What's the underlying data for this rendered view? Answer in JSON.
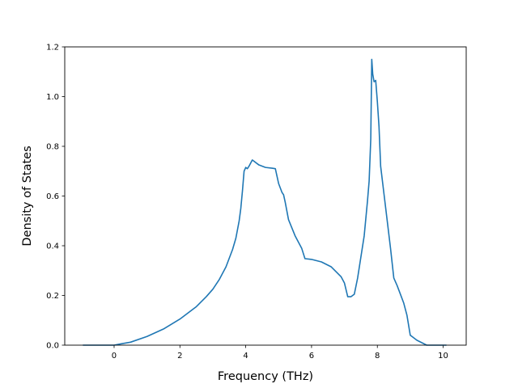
{
  "chart_data": {
    "type": "line",
    "title": "",
    "xlabel": "Frequency (THz)",
    "ylabel": "Density of States",
    "xlim": [
      -1.5,
      10.7
    ],
    "ylim": [
      0.0,
      1.2
    ],
    "xticks": [
      0,
      2,
      4,
      6,
      8,
      10
    ],
    "xtick_labels": [
      "0",
      "2",
      "4",
      "6",
      "8",
      "10"
    ],
    "yticks": [
      0.0,
      0.2,
      0.4,
      0.6,
      0.8,
      1.0,
      1.2
    ],
    "ytick_labels": [
      "0.0",
      "0.2",
      "0.4",
      "0.6",
      "0.8",
      "1.0",
      "1.2"
    ],
    "grid": false,
    "legend": "none",
    "colors": {
      "line": "#1f77b4"
    },
    "series": [
      {
        "x": [
          -0.95,
          -0.5,
          0.0,
          0.2,
          0.5,
          1.0,
          1.5,
          2.0,
          2.5,
          2.8,
          3.0,
          3.2,
          3.4,
          3.6,
          3.7,
          3.8,
          3.85,
          3.9,
          3.95,
          4.0,
          4.05,
          4.1,
          4.2,
          4.4,
          4.6,
          4.8,
          4.9,
          4.95,
          5.0,
          5.1,
          5.15,
          5.2,
          5.3,
          5.5,
          5.7,
          5.8,
          6.0,
          6.3,
          6.6,
          6.9,
          7.0,
          7.1,
          7.2,
          7.3,
          7.4,
          7.5,
          7.6,
          7.7,
          7.75,
          7.8,
          7.83,
          7.86,
          7.9,
          7.95,
          8.0,
          8.05,
          8.1,
          8.2,
          8.3,
          8.4,
          8.45,
          8.5,
          8.6,
          8.7,
          8.8,
          8.9,
          9.0,
          9.1,
          9.2,
          9.5,
          10.0,
          10.1
        ],
        "y": [
          0.0,
          0.0,
          0.0,
          0.005,
          0.012,
          0.035,
          0.065,
          0.105,
          0.155,
          0.195,
          0.225,
          0.265,
          0.315,
          0.385,
          0.43,
          0.5,
          0.55,
          0.62,
          0.7,
          0.715,
          0.71,
          0.72,
          0.745,
          0.725,
          0.715,
          0.712,
          0.71,
          0.68,
          0.65,
          0.615,
          0.605,
          0.575,
          0.505,
          0.44,
          0.39,
          0.348,
          0.345,
          0.335,
          0.315,
          0.275,
          0.25,
          0.195,
          0.195,
          0.205,
          0.27,
          0.355,
          0.44,
          0.58,
          0.66,
          0.83,
          1.15,
          1.09,
          1.06,
          1.065,
          0.98,
          0.88,
          0.72,
          0.61,
          0.5,
          0.39,
          0.33,
          0.27,
          0.24,
          0.205,
          0.17,
          0.12,
          0.04,
          0.03,
          0.02,
          0.0,
          0.0,
          0.0
        ]
      }
    ]
  }
}
